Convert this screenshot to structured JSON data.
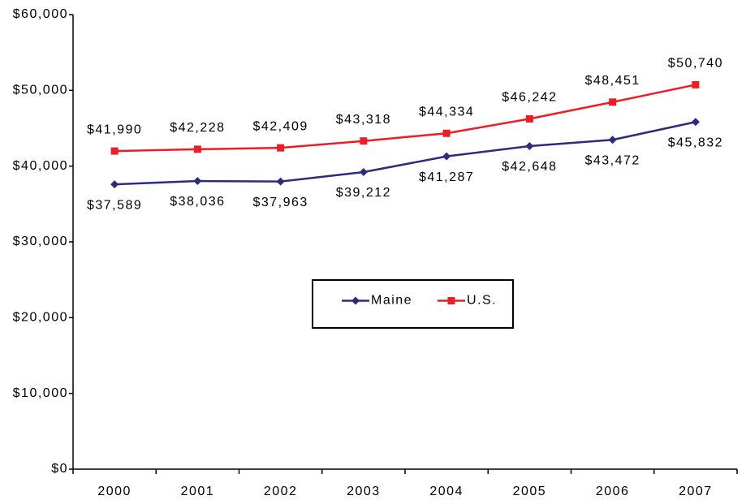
{
  "chart_data": {
    "type": "line",
    "categories": [
      "2000",
      "2001",
      "2002",
      "2003",
      "2004",
      "2005",
      "2006",
      "2007"
    ],
    "series": [
      {
        "name": "Maine",
        "color": "#2b2b7f",
        "marker": "diamond",
        "values": [
          37589,
          38036,
          37963,
          39212,
          41287,
          42648,
          43472,
          45832
        ],
        "value_labels": [
          "$37,589",
          "$38,036",
          "$37,963",
          "$39,212",
          "$41,287",
          "$42,648",
          "$43,472",
          "$45,832"
        ]
      },
      {
        "name": "U.S.",
        "color": "#ee1c24",
        "marker": "square",
        "values": [
          41990,
          42228,
          42409,
          43318,
          44334,
          46242,
          48451,
          50740
        ],
        "value_labels": [
          "$41,990",
          "$42,228",
          "$42,409",
          "$43,318",
          "$44,334",
          "$46,242",
          "$48,451",
          "$50,740"
        ]
      }
    ],
    "ylim": [
      0,
      60000
    ],
    "yticks": [
      {
        "value": 0,
        "label": "$0"
      },
      {
        "value": 10000,
        "label": "$10,000"
      },
      {
        "value": 20000,
        "label": "$20,000"
      },
      {
        "value": 30000,
        "label": "$30,000"
      },
      {
        "value": 40000,
        "label": "$40,000"
      },
      {
        "value": 50000,
        "label": "$50,000"
      },
      {
        "value": 60000,
        "label": "$60,000"
      }
    ],
    "legend": "center"
  }
}
